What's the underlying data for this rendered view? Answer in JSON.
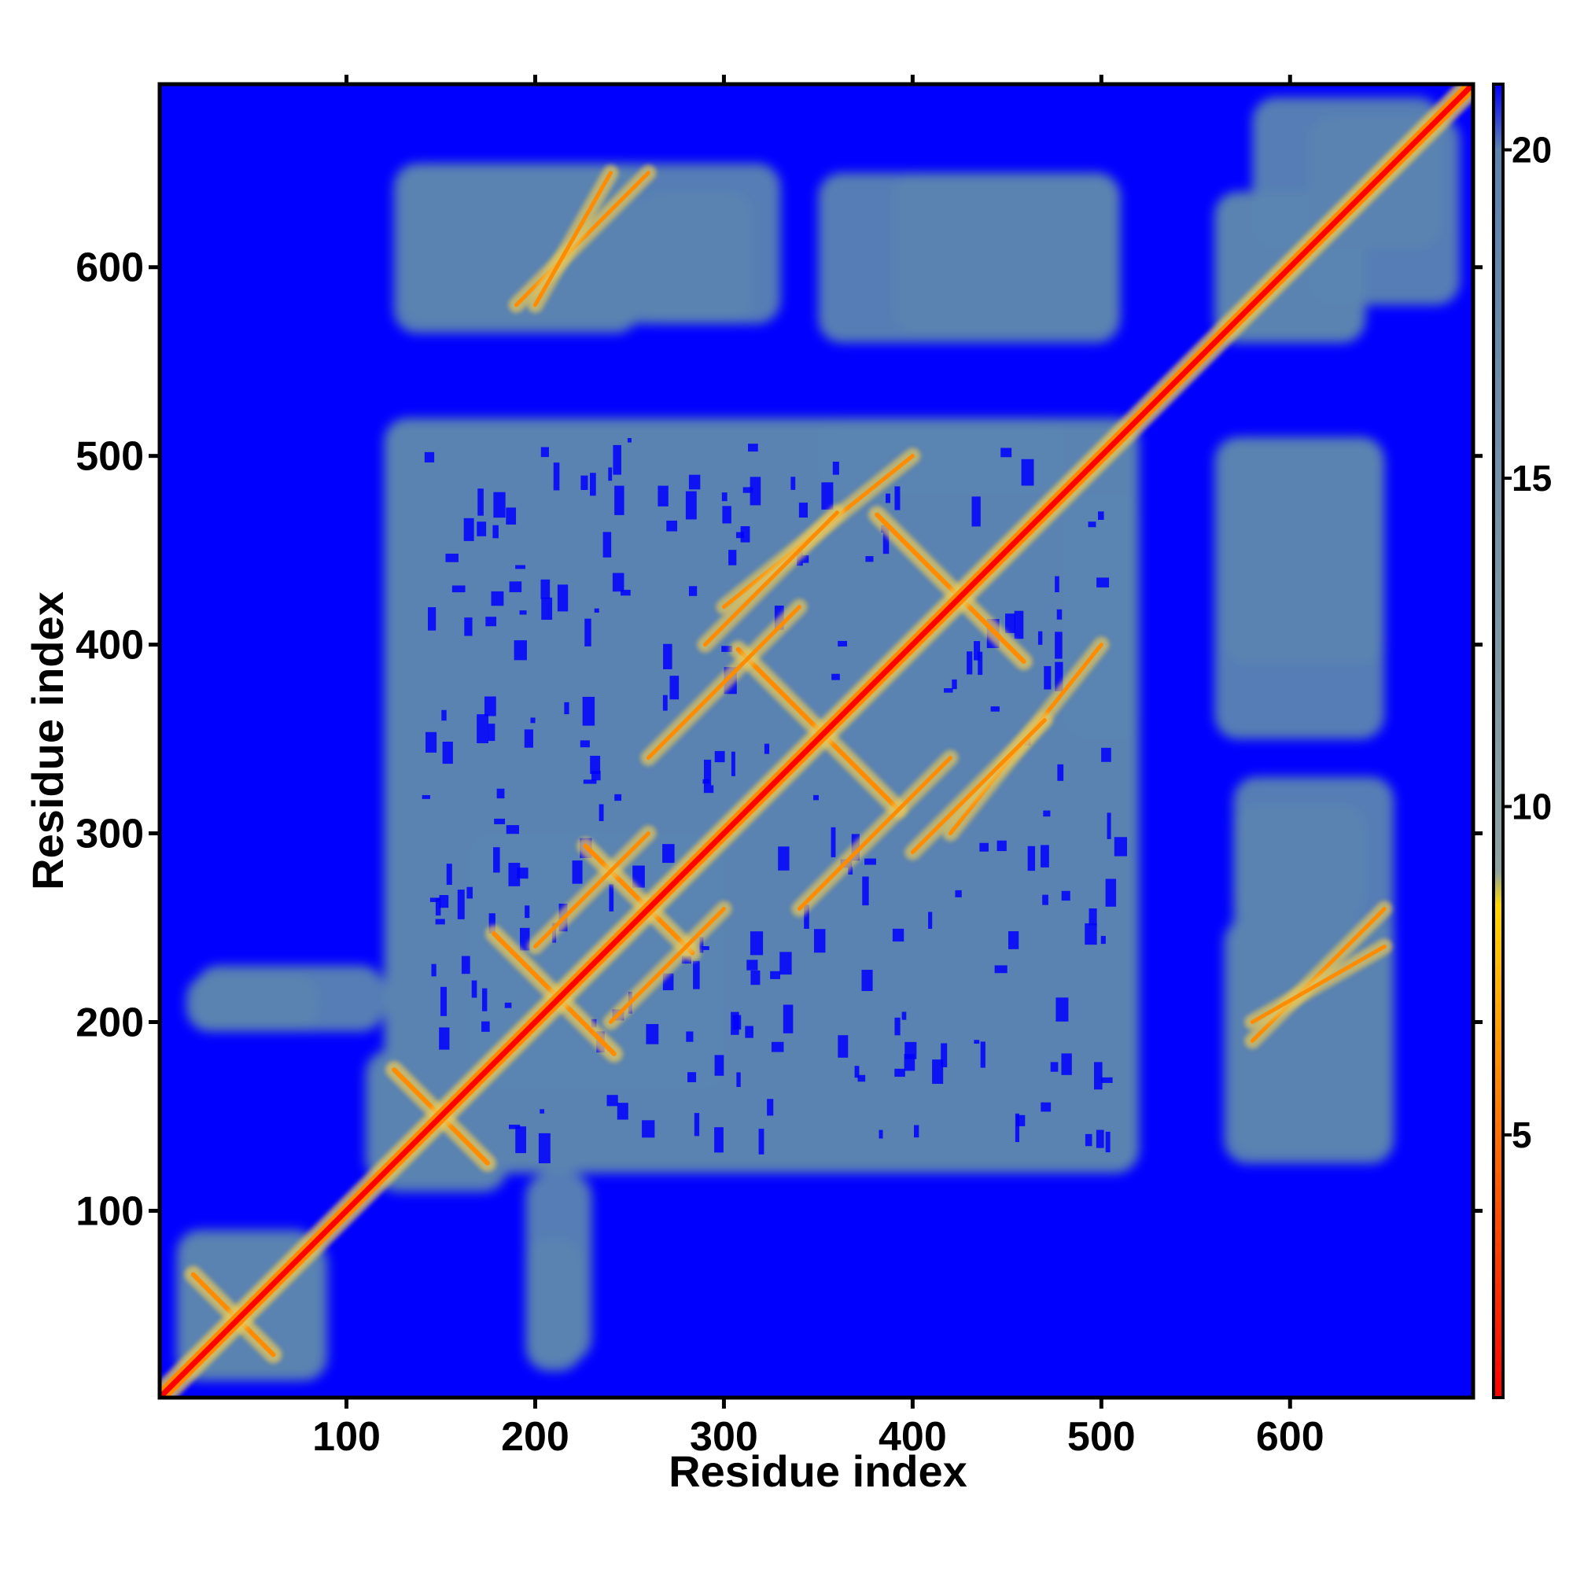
{
  "chart_data": {
    "type": "heatmap",
    "title": "",
    "xlabel": "Residue index",
    "ylabel": "Residue index",
    "xlim": [
      1,
      697
    ],
    "ylim": [
      1,
      697
    ],
    "xticks": [
      100,
      200,
      300,
      400,
      500,
      600
    ],
    "yticks": [
      100,
      200,
      300,
      400,
      500,
      600
    ],
    "colorbar": {
      "ticks": [
        5,
        10,
        15,
        20
      ],
      "range": [
        1,
        21
      ],
      "stops": [
        {
          "value": 1,
          "color": "#ff0000"
        },
        {
          "value": 6,
          "color": "#ff8c00"
        },
        {
          "value": 8.5,
          "color": "#ffd700"
        },
        {
          "value": 9,
          "color": "#8fa2a0"
        },
        {
          "value": 20,
          "color": "#5b84b1"
        },
        {
          "value": 21,
          "color": "#0000ff"
        }
      ]
    },
    "colors": {
      "background": "#0000ff",
      "contact": "#5b84b1",
      "mid": "#e6c85c",
      "close": "#ff8c00",
      "diagonal": "#ff0000"
    },
    "diagonal": {
      "from": 1,
      "to": 697
    },
    "regions": [
      {
        "x": [
          10,
          85
        ],
        "y": [
          10,
          90
        ]
      },
      {
        "x": [
          115,
          185
        ],
        "y": [
          110,
          185
        ]
      },
      {
        "x": [
          165,
          300
        ],
        "y": [
          170,
          300
        ]
      },
      {
        "x": [
          120,
          520
        ],
        "y": [
          120,
          520
        ]
      },
      {
        "x": [
          130,
          330
        ],
        "y": [
          570,
          655
        ]
      },
      {
        "x": [
          350,
          510
        ],
        "y": [
          560,
          650
        ]
      },
      {
        "x": [
          560,
          640
        ],
        "y": [
          560,
          640
        ]
      },
      {
        "x": [
          580,
          680
        ],
        "y": [
          610,
          690
        ]
      },
      {
        "x": [
          565,
          650
        ],
        "y": [
          390,
          510
        ]
      },
      {
        "x": [
          570,
          640
        ],
        "y": [
          255,
          315
        ]
      },
      {
        "x": [
          565,
          655
        ],
        "y": [
          125,
          255
        ]
      },
      {
        "x": [
          15,
          85
        ],
        "y": [
          195,
          225
        ]
      },
      {
        "x": [
          195,
          230
        ],
        "y": [
          20,
          120
        ]
      },
      {
        "x": [
          480,
          520
        ],
        "y": [
          350,
          480
        ]
      }
    ],
    "antidiagonal_bands": [
      {
        "center": [
          40,
          45
        ],
        "length": 60
      },
      {
        "center": [
          150,
          150
        ],
        "length": 70
      },
      {
        "center": [
          210,
          215
        ],
        "length": 90
      },
      {
        "center": [
          350,
          355
        ],
        "length": 120
      },
      {
        "center": [
          420,
          430
        ],
        "length": 110
      },
      {
        "center": [
          255,
          265
        ],
        "length": 80
      }
    ],
    "parallel_bands": [
      {
        "from": [
          240,
          200
        ],
        "to": [
          300,
          260
        ]
      },
      {
        "from": [
          260,
          340
        ],
        "to": [
          340,
          420
        ]
      },
      {
        "from": [
          300,
          420
        ],
        "to": [
          400,
          500
        ]
      },
      {
        "from": [
          400,
          290
        ],
        "to": [
          470,
          360
        ]
      },
      {
        "from": [
          580,
          190
        ],
        "to": [
          650,
          260
        ]
      },
      {
        "from": [
          200,
          580
        ],
        "to": [
          240,
          650
        ]
      }
    ]
  }
}
